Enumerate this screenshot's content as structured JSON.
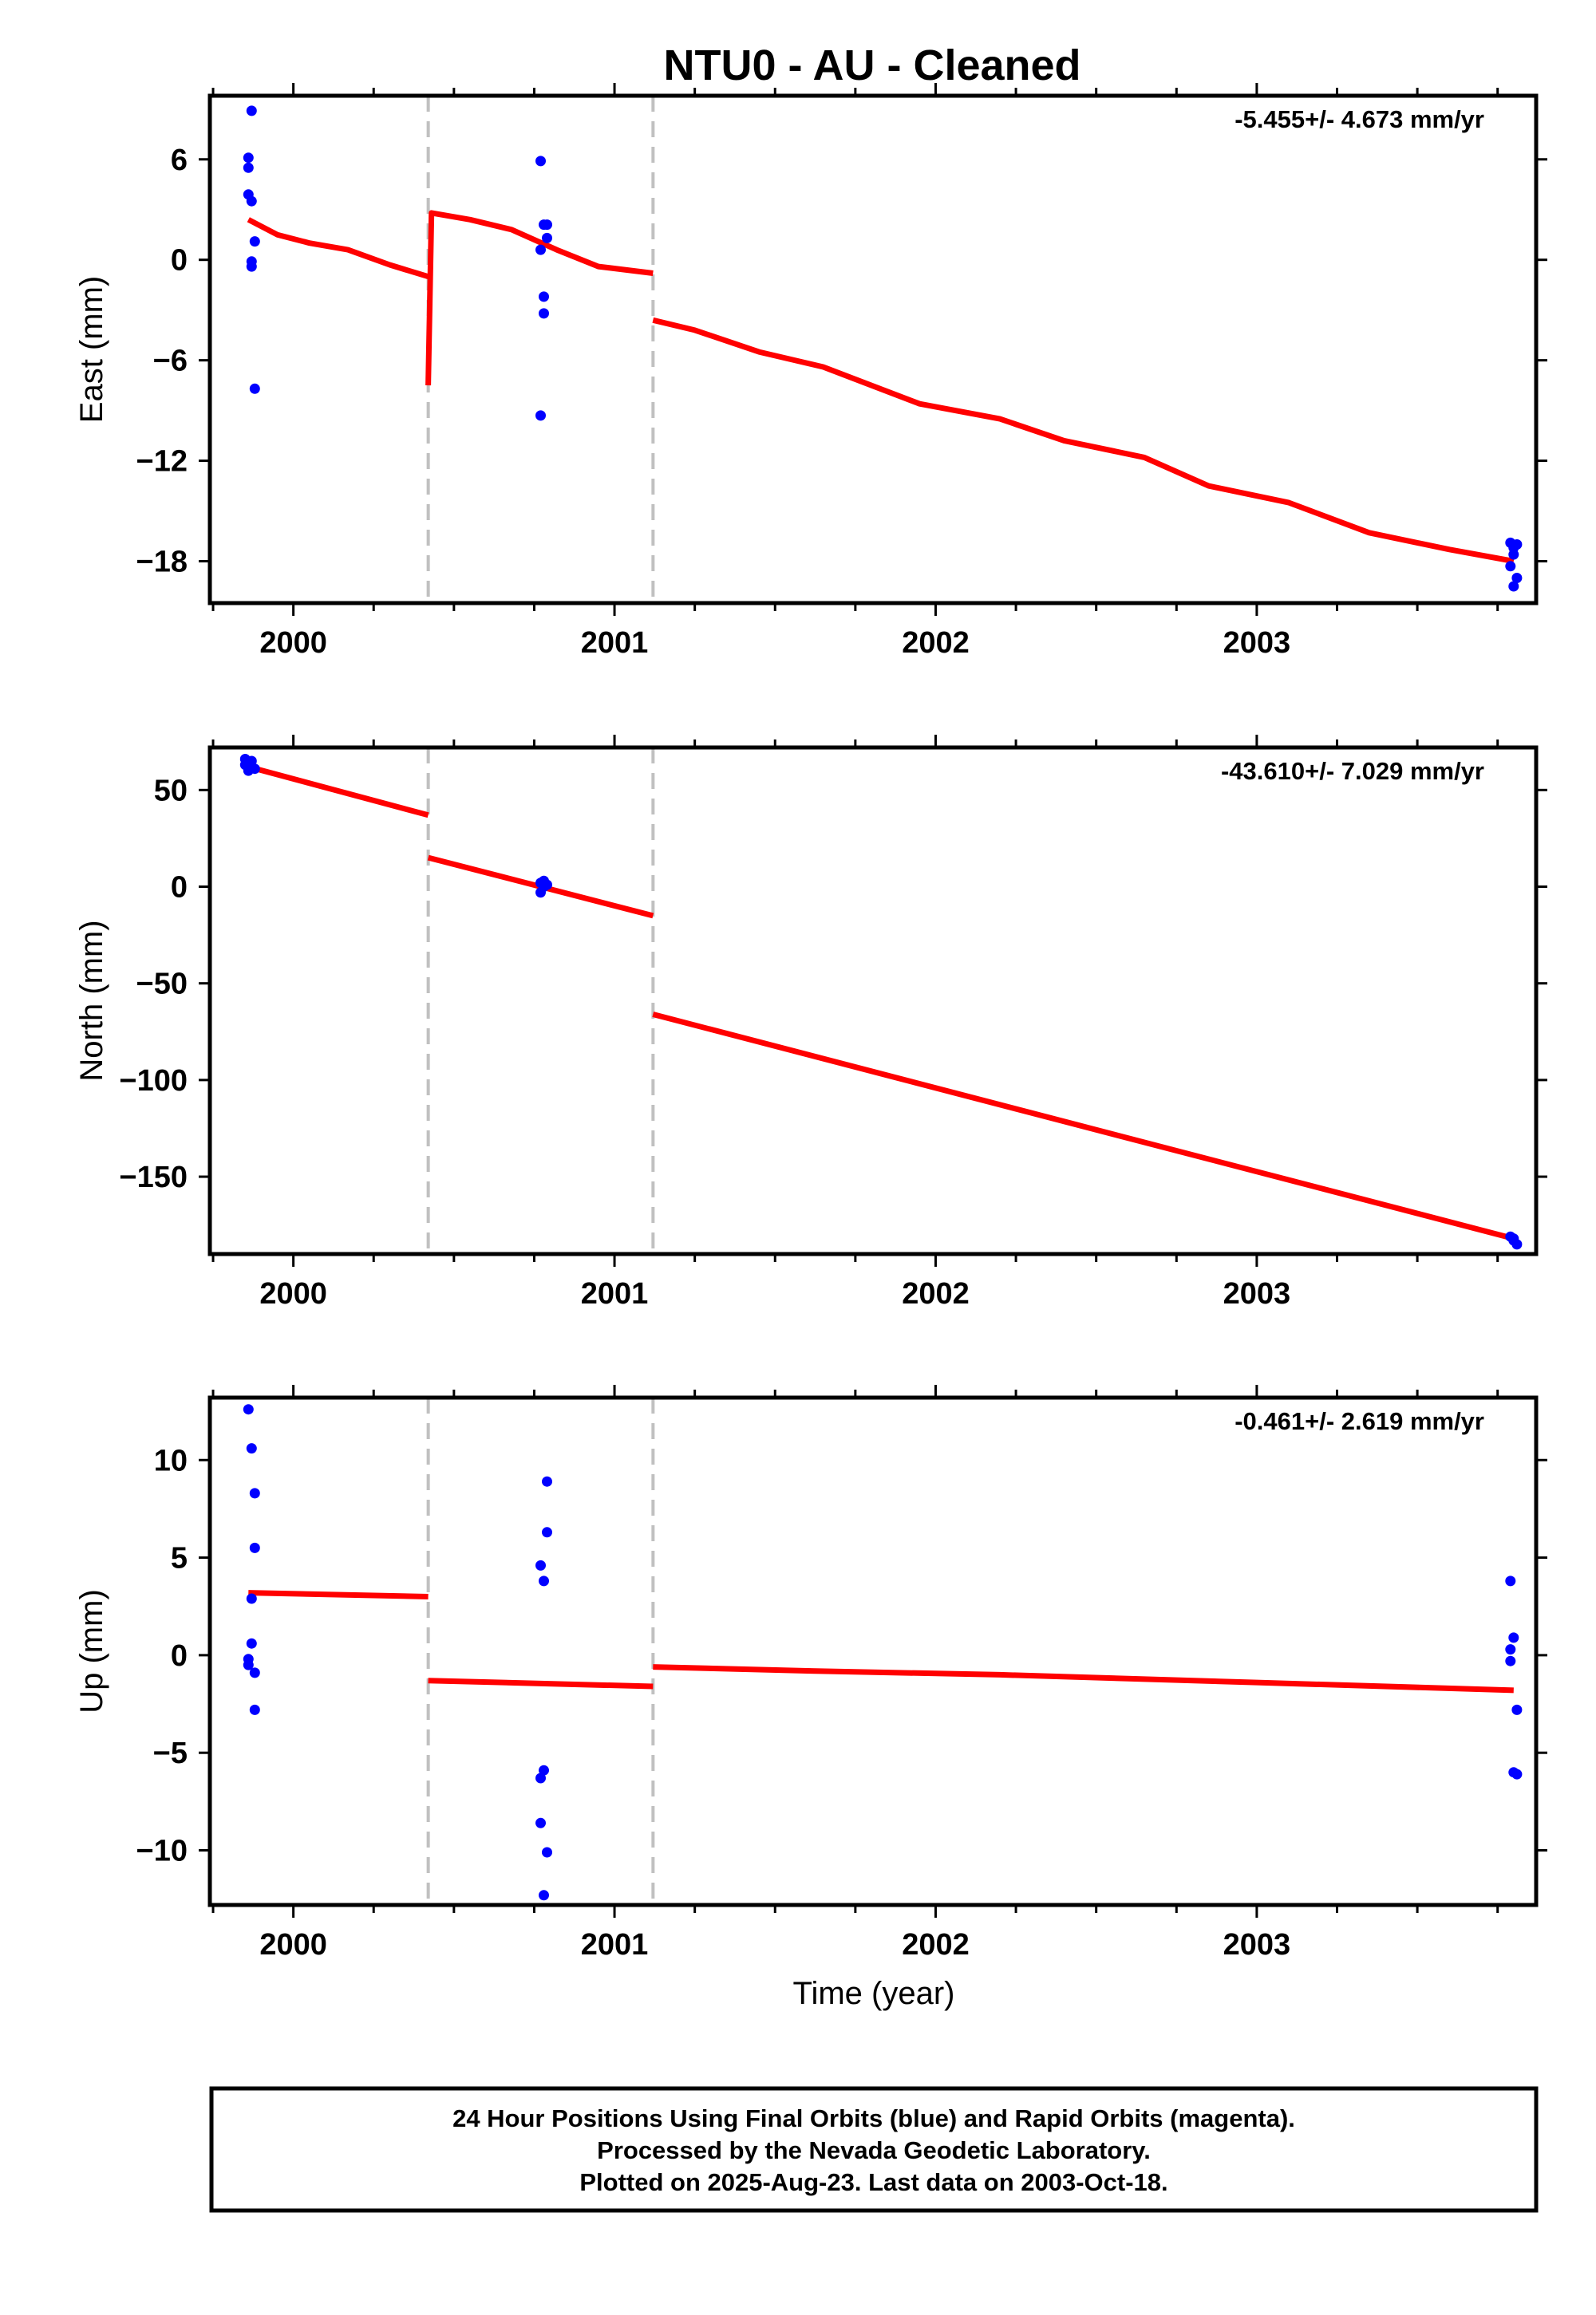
{
  "figure": {
    "title": "NTU0  - AU - Cleaned",
    "footer_lines": [
      "24 Hour Positions Using Final Orbits (blue) and Rapid Orbits (magenta).",
      "Processed by the Nevada Geodetic Laboratory.",
      "Plotted on 2025-Aug-23. Last data on 2003-Oct-18."
    ],
    "colors": {
      "data": "#0000ff",
      "model": "#ff0000",
      "break": "#c0c0c0",
      "frame": "#000000"
    }
  },
  "chart_data": [
    {
      "type": "scatter",
      "ylabel": "East (mm)",
      "xlabel": "",
      "rate": "-5.455+/- 4.673 mm/yr",
      "xlim": [
        1999.74,
        2003.87
      ],
      "ylim": [
        -20.5,
        9.8
      ],
      "yticks": [
        6,
        0,
        -6,
        -12,
        -18
      ],
      "ytick_labels": [
        "6",
        "0",
        "−6",
        "−12",
        "−18"
      ],
      "xticks": [
        2000,
        2001,
        2002,
        2003
      ],
      "xtick_labels": [
        "2000",
        "2001",
        "2002",
        "2003"
      ],
      "breaks": [
        2000.42,
        2001.12
      ],
      "points": [
        [
          1999.87,
          8.9
        ],
        [
          1999.86,
          6.1
        ],
        [
          1999.86,
          5.5
        ],
        [
          1999.86,
          3.9
        ],
        [
          1999.87,
          3.5
        ],
        [
          1999.88,
          1.1
        ],
        [
          1999.87,
          -0.1
        ],
        [
          1999.87,
          -0.4
        ],
        [
          1999.88,
          -7.7
        ],
        [
          2000.77,
          5.9
        ],
        [
          2000.78,
          2.1
        ],
        [
          2000.79,
          2.1
        ],
        [
          2000.79,
          1.3
        ],
        [
          2000.77,
          0.6
        ],
        [
          2000.78,
          -2.2
        ],
        [
          2000.78,
          -3.2
        ],
        [
          2000.77,
          -9.3
        ],
        [
          2003.79,
          -16.9
        ],
        [
          2003.8,
          -17.2
        ],
        [
          2003.8,
          -17.6
        ],
        [
          2003.81,
          -17.0
        ],
        [
          2003.79,
          -18.3
        ],
        [
          2003.81,
          -19.0
        ],
        [
          2003.8,
          -19.5
        ]
      ],
      "model": [
        [
          [
            1999.86,
            2.4
          ],
          [
            1999.95,
            1.5
          ],
          [
            2000.05,
            1.0
          ],
          [
            2000.17,
            0.6
          ],
          [
            2000.3,
            -0.3
          ],
          [
            2000.42,
            -1.0
          ]
        ],
        [
          [
            2000.42,
            -7.5
          ],
          [
            2000.43,
            2.8
          ],
          [
            2000.55,
            2.4
          ],
          [
            2000.68,
            1.8
          ],
          [
            2000.82,
            0.6
          ],
          [
            2000.95,
            -0.4
          ],
          [
            2001.12,
            -0.8
          ]
        ],
        [
          [
            2001.12,
            -3.6
          ],
          [
            2001.25,
            -4.2
          ],
          [
            2001.45,
            -5.5
          ],
          [
            2001.65,
            -6.4
          ],
          [
            2001.8,
            -7.5
          ],
          [
            2001.95,
            -8.6
          ],
          [
            2002.2,
            -9.5
          ],
          [
            2002.4,
            -10.8
          ],
          [
            2002.65,
            -11.8
          ],
          [
            2002.85,
            -13.5
          ],
          [
            2003.1,
            -14.5
          ],
          [
            2003.35,
            -16.3
          ],
          [
            2003.6,
            -17.3
          ],
          [
            2003.8,
            -18.0
          ]
        ]
      ]
    },
    {
      "type": "scatter",
      "ylabel": "North (mm)",
      "xlabel": "",
      "rate": "-43.610+/- 7.029 mm/yr",
      "xlim": [
        1999.74,
        2003.87
      ],
      "ylim": [
        -190,
        72
      ],
      "yticks": [
        50,
        0,
        -50,
        -100,
        -150
      ],
      "ytick_labels": [
        "50",
        "0",
        "−50",
        "−100",
        "−150"
      ],
      "xticks": [
        2000,
        2001,
        2002,
        2003
      ],
      "xtick_labels": [
        "2000",
        "2001",
        "2002",
        "2003"
      ],
      "breaks": [
        2000.42,
        2001.12
      ],
      "points": [
        [
          1999.85,
          66
        ],
        [
          1999.86,
          64
        ],
        [
          1999.87,
          62
        ],
        [
          1999.86,
          60
        ],
        [
          1999.88,
          61
        ],
        [
          1999.87,
          65
        ],
        [
          1999.85,
          63
        ],
        [
          2000.77,
          2
        ],
        [
          2000.78,
          0
        ],
        [
          2000.79,
          1
        ],
        [
          2000.77,
          -3
        ],
        [
          2000.78,
          3
        ],
        [
          2003.79,
          -181
        ],
        [
          2003.8,
          -183
        ],
        [
          2003.81,
          -185
        ],
        [
          2003.8,
          -182
        ]
      ],
      "model": [
        [
          [
            1999.86,
            62
          ],
          [
            2000.42,
            37
          ]
        ],
        [
          [
            2000.42,
            15
          ],
          [
            2001.12,
            -15
          ]
        ],
        [
          [
            2001.12,
            -66
          ],
          [
            2003.8,
            -182
          ]
        ]
      ]
    },
    {
      "type": "scatter",
      "ylabel": "Up (mm)",
      "xlabel": "Time (year)",
      "rate": "-0.461+/- 2.619 mm/yr",
      "xlim": [
        1999.74,
        2003.87
      ],
      "ylim": [
        -12.8,
        13.2
      ],
      "yticks": [
        10,
        5,
        0,
        -5,
        -10
      ],
      "ytick_labels": [
        "10",
        "5",
        "0",
        "−5",
        "−10"
      ],
      "xticks": [
        2000,
        2001,
        2002,
        2003
      ],
      "xtick_labels": [
        "2000",
        "2001",
        "2002",
        "2003"
      ],
      "breaks": [
        2000.42,
        2001.12
      ],
      "points": [
        [
          1999.86,
          12.6
        ],
        [
          1999.87,
          10.6
        ],
        [
          1999.88,
          8.3
        ],
        [
          1999.88,
          5.5
        ],
        [
          1999.87,
          2.9
        ],
        [
          1999.87,
          0.6
        ],
        [
          1999.86,
          -0.2
        ],
        [
          1999.86,
          -0.5
        ],
        [
          1999.88,
          -0.9
        ],
        [
          1999.88,
          -2.8
        ],
        [
          2000.79,
          8.9
        ],
        [
          2000.79,
          6.3
        ],
        [
          2000.77,
          4.6
        ],
        [
          2000.78,
          3.8
        ],
        [
          2000.78,
          -5.9
        ],
        [
          2000.77,
          -6.3
        ],
        [
          2000.77,
          -8.6
        ],
        [
          2000.79,
          -10.1
        ],
        [
          2000.78,
          -12.3
        ],
        [
          2003.79,
          3.8
        ],
        [
          2003.8,
          0.9
        ],
        [
          2003.79,
          0.3
        ],
        [
          2003.79,
          -0.3
        ],
        [
          2003.81,
          -2.8
        ],
        [
          2003.8,
          -6.0
        ],
        [
          2003.81,
          -6.1
        ]
      ],
      "model": [
        [
          [
            1999.86,
            3.2
          ],
          [
            2000.42,
            3.0
          ]
        ],
        [
          [
            2000.42,
            -1.3
          ],
          [
            2001.12,
            -1.6
          ]
        ],
        [
          [
            2001.12,
            -0.6
          ],
          [
            2001.6,
            -0.8
          ],
          [
            2002.2,
            -1.0
          ],
          [
            2003.0,
            -1.4
          ],
          [
            2003.8,
            -1.8
          ]
        ]
      ]
    }
  ]
}
